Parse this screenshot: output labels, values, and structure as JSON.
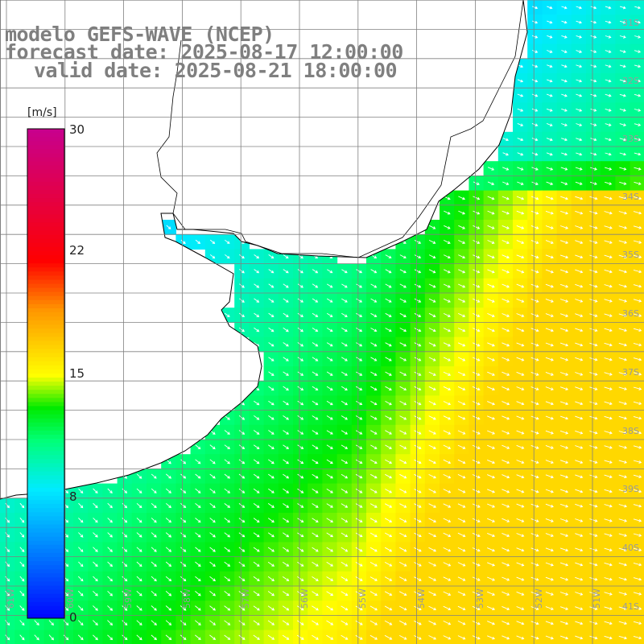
{
  "title": {
    "line1": "modelo GEFS-WAVE (NCEP)",
    "line2": "forecast date: 2025-08-17 12:00:00",
    "line3": "valid date: 2025-08-21 18:00:00"
  },
  "colorbar": {
    "unit": "[m/s]",
    "ticks": [
      "30",
      "22",
      "15",
      "8",
      "0"
    ],
    "range": [
      0,
      30
    ]
  },
  "lat_labels": [
    "31S",
    "32S",
    "33S",
    "34S",
    "35S",
    "36S",
    "37S",
    "38S",
    "39S",
    "40S",
    "41S"
  ],
  "lon_labels": [
    "61W",
    "60W",
    "59W",
    "58W",
    "57W",
    "56W",
    "55W",
    "54W",
    "53W",
    "52W",
    "51W"
  ],
  "colors": {
    "land": "#ffffff",
    "coast": "#000000",
    "grid": "#808080",
    "arrow": "#ffffff",
    "text": "#7f7f7f"
  }
}
